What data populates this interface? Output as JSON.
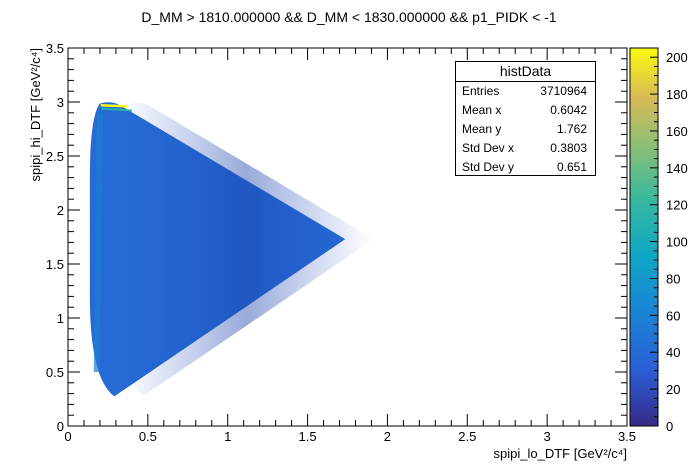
{
  "chart_data": {
    "type": "heatmap",
    "title": "D_MM > 1810.000000 && D_MM < 1830.000000 && p1_PIDK < -1",
    "xlabel": "spipi_lo_DTF [GeV²/c⁴]",
    "ylabel": "spipi_hi_DTF [GeV²/c⁴]",
    "xlim": [
      0,
      3.5
    ],
    "ylim": [
      0,
      3.5
    ],
    "x_ticks": [
      "0",
      "0.5",
      "1",
      "1.5",
      "2",
      "2.5",
      "3",
      "3.5"
    ],
    "y_ticks": [
      "0",
      "0.5",
      "1",
      "1.5",
      "2",
      "2.5",
      "3",
      "3.5"
    ],
    "colorbar": {
      "min": 0,
      "max": 205,
      "ticks": [
        "0",
        "20",
        "40",
        "60",
        "80",
        "100",
        "120",
        "140",
        "160",
        "180",
        "200"
      ]
    },
    "region": {
      "upper_left": [
        0.2,
        2.98
      ],
      "apex": [
        1.73,
        1.73
      ],
      "lower_left": [
        0.29,
        0.28
      ],
      "left_edge_x": 0.14
    },
    "typical_content": 40,
    "peak_content": 205,
    "stats": {
      "name": "histData",
      "rows": [
        {
          "label": "Entries",
          "value": "3710964"
        },
        {
          "label": "Mean x",
          "value": "0.6042"
        },
        {
          "label": "Mean y",
          "value": "1.762"
        },
        {
          "label": "Std Dev x",
          "value": "0.3803"
        },
        {
          "label": "Std Dev y",
          "value": "0.651"
        }
      ]
    }
  }
}
